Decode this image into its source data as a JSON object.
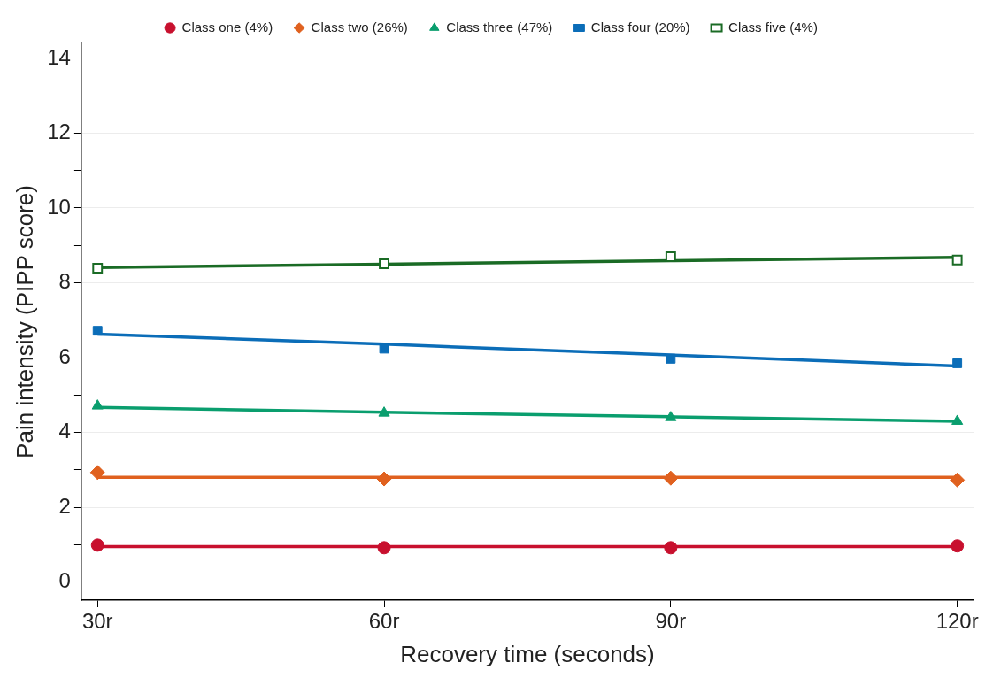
{
  "chart_data": {
    "type": "line",
    "xlabel": "Recovery time (seconds)",
    "ylabel": "Pain intensity (PIPP score)",
    "x": [
      30,
      60,
      90,
      120
    ],
    "xlim": [
      28.3,
      121.7
    ],
    "xticks": [
      {
        "value": 30,
        "label": "30r"
      },
      {
        "value": 60,
        "label": "60r"
      },
      {
        "value": 90,
        "label": "90r"
      },
      {
        "value": 120,
        "label": "120r"
      }
    ],
    "ylim": [
      -0.48,
      14.4
    ],
    "yticks": [
      0,
      {
        "value": 1,
        "label": null
      },
      2,
      {
        "value": 3,
        "label": null
      },
      4,
      {
        "value": 5,
        "label": null
      },
      6,
      {
        "value": 7,
        "label": null
      },
      8,
      {
        "value": 9,
        "label": null
      },
      10,
      {
        "value": 11,
        "label": null
      },
      12,
      {
        "value": 13,
        "label": null
      },
      14
    ],
    "grid": "y",
    "legend": "top",
    "line_style": "solid",
    "series": [
      {
        "name": "Class one (4%)",
        "type": "scatter",
        "marker": "circle",
        "color": "#c8102e",
        "values": [
          0.99,
          0.92,
          0.92,
          0.97
        ]
      },
      {
        "name": "Class two (26%)",
        "type": "scatter",
        "marker": "diamond",
        "color": "#e0611f",
        "values": [
          2.93,
          2.76,
          2.78,
          2.73
        ]
      },
      {
        "name": "Class three (47%)",
        "type": "scatter",
        "marker": "triangle",
        "color": "#0a9e6e",
        "values": [
          4.71,
          4.52,
          4.4,
          4.3
        ]
      },
      {
        "name": "Class four (20%)",
        "type": "scatter",
        "marker": "square",
        "color": "#0b6db8",
        "values": [
          6.72,
          6.24,
          5.97,
          5.85
        ]
      },
      {
        "name": "Class five (4%)",
        "type": "scatter",
        "marker": "square-open",
        "color": "#1a6b25",
        "values": [
          8.39,
          8.51,
          8.7,
          8.61
        ]
      },
      {
        "marker": "none",
        "color": "#c8102e",
        "values": [
          0.95,
          0.95,
          0.95,
          0.95
        ]
      },
      {
        "marker": "none",
        "color": "#e0611f",
        "values": [
          2.8,
          2.8,
          2.8,
          2.8
        ]
      },
      {
        "marker": "none",
        "color": "#0a9e6e",
        "values": [
          4.67,
          4.54,
          4.42,
          4.3
        ]
      },
      {
        "marker": "none",
        "color": "#0b6db8",
        "values": [
          6.63,
          6.36,
          6.07,
          5.78
        ]
      },
      {
        "marker": "none",
        "color": "#1a6b25",
        "values": [
          8.41,
          8.5,
          8.59,
          8.68
        ]
      }
    ]
  }
}
